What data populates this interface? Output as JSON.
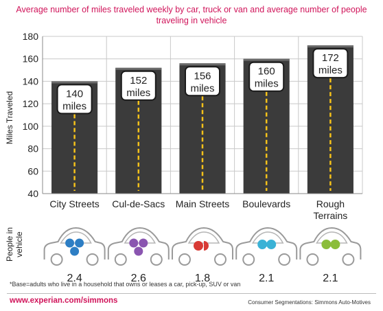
{
  "chart_data": {
    "type": "bar",
    "title": "Average number of miles traveled weekly by car, truck or van and average number of people traveling in vehicle",
    "ylabel": "Miles Traveled",
    "ylim": [
      40,
      180
    ],
    "yticks": [
      40,
      60,
      80,
      100,
      120,
      140,
      160,
      180
    ],
    "categories": [
      {
        "lines": [
          "City Streets"
        ]
      },
      {
        "lines": [
          "Cul-de-Sacs"
        ]
      },
      {
        "lines": [
          "Main Streets"
        ]
      },
      {
        "lines": [
          "Boulevards"
        ]
      },
      {
        "lines": [
          "Rough",
          "Terrains"
        ]
      }
    ],
    "values": [
      140,
      152,
      156,
      160,
      172
    ],
    "value_labels": [
      [
        "140",
        "miles"
      ],
      [
        "152",
        "miles"
      ],
      [
        "156",
        "miles"
      ],
      [
        "160",
        "miles"
      ],
      [
        "172",
        "miles"
      ]
    ],
    "grid": true,
    "bar_color": "#3b3b3b",
    "center_line_color": "#f6c21a",
    "people": {
      "label_lines": [
        "People in",
        "vehicle"
      ],
      "values": [
        "2.4",
        "2.6",
        "1.8",
        "2.1",
        "2.1"
      ],
      "dot_colors": [
        "#2d7ec4",
        "#8a55b0",
        "#d83a35",
        "#3ab2d6",
        "#8bbd3a"
      ]
    }
  },
  "footnote": "*Base=adults who live in a household that owns or leases a car, pick-up, SUV or van",
  "website": "www.experian.com/simmons",
  "source": "Consumer Segmentations: Simmons Auto-Motives"
}
